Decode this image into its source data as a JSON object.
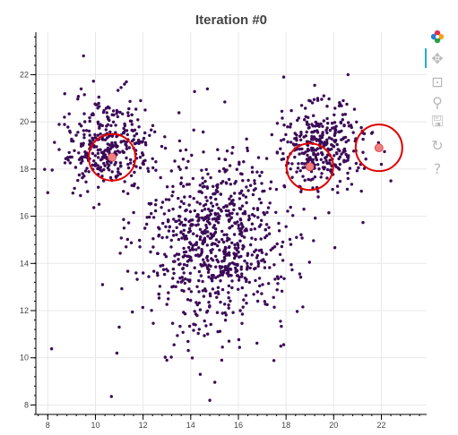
{
  "chart_data": {
    "type": "scatter",
    "title": "Iteration #0",
    "xlabel": "",
    "ylabel": "",
    "xlim": [
      7.5,
      23.9
    ],
    "ylim": [
      7.6,
      23.8
    ],
    "x_ticks": [
      8,
      10,
      12,
      14,
      16,
      18,
      20,
      22
    ],
    "y_ticks": [
      8,
      10,
      12,
      14,
      16,
      18,
      20,
      22
    ],
    "grid": true,
    "legend": "none",
    "series": [
      {
        "kind": "points",
        "color": "#3b0a57",
        "point_count": 1500,
        "clusters": [
          {
            "center": [
              15.0,
              15.0
            ],
            "spread": [
              1.6,
              1.9
            ],
            "share": 0.55
          },
          {
            "center": [
              10.5,
              19.0
            ],
            "spread": [
              0.9,
              0.9
            ],
            "share": 0.225
          },
          {
            "center": [
              19.5,
              19.0
            ],
            "spread": [
              0.9,
              0.9
            ],
            "share": 0.225
          }
        ],
        "points": [
          [
            9.5,
            22.8
          ],
          [
            14.7,
            21.4
          ],
          [
            20.6,
            22.0
          ],
          [
            17.9,
            21.9
          ],
          [
            9.4,
            21.4
          ],
          [
            11.3,
            21.7
          ],
          [
            14.4,
            9.3
          ],
          [
            14.8,
            8.2
          ],
          [
            15.3,
            9.9
          ],
          [
            13.0,
            9.9
          ],
          [
            10.9,
            10.2
          ],
          [
            11.0,
            11.3
          ],
          [
            10.3,
            13.1
          ],
          [
            8.7,
            20.2
          ],
          [
            8.0,
            17.0
          ],
          [
            8.9,
            18.7
          ],
          [
            22.4,
            17.5
          ],
          [
            22.0,
            18.2
          ],
          [
            20.4,
            20.9
          ],
          [
            11.2,
            15.5
          ]
        ]
      },
      {
        "kind": "centroids",
        "color": "#f08080",
        "ring_color": "#e00000",
        "points": [
          [
            10.7,
            18.5
          ],
          [
            19.0,
            18.1
          ],
          [
            21.9,
            18.9
          ]
        ]
      }
    ]
  },
  "toolbar": {
    "tools": [
      {
        "name": "bokeh-logo-icon",
        "glyph": "✿",
        "active": false
      },
      {
        "name": "pan-tool-icon",
        "glyph": "✥",
        "active": true
      },
      {
        "name": "box-zoom-tool-icon",
        "glyph": "⊡",
        "active": false
      },
      {
        "name": "wheel-zoom-tool-icon",
        "glyph": "⚲",
        "active": false
      },
      {
        "name": "save-tool-icon",
        "glyph": "🖫",
        "active": false
      },
      {
        "name": "reset-tool-icon",
        "glyph": "↻",
        "active": false
      },
      {
        "name": "help-tool-icon",
        "glyph": "?",
        "active": false
      }
    ]
  }
}
